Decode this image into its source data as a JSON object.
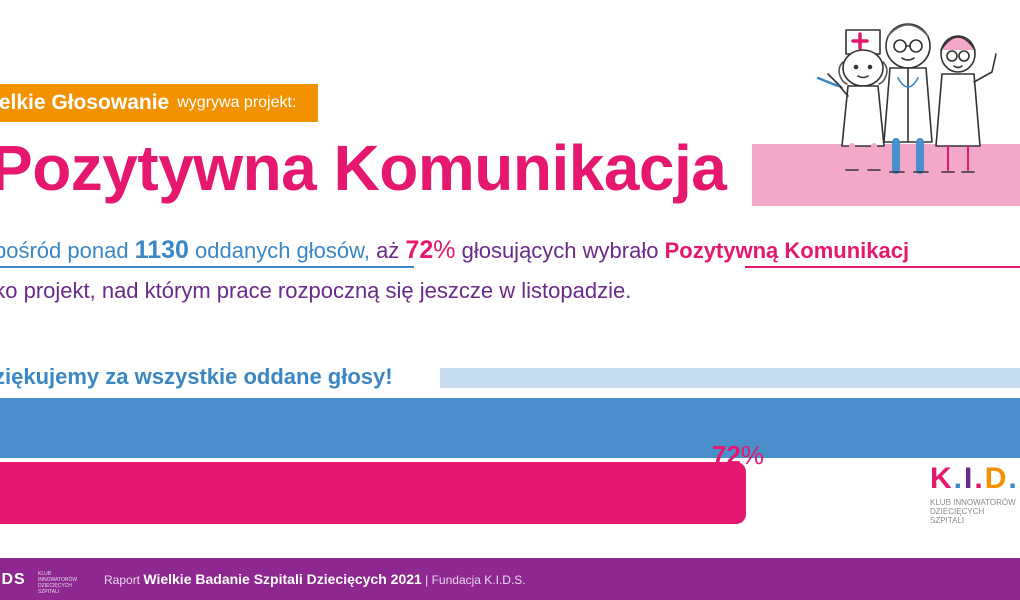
{
  "header": {
    "tag_strong": "ielkie Głosowanie",
    "tag_light": "wygrywa projekt:"
  },
  "title": "Pozytywna Komunikacja",
  "sentence": {
    "l1_a": "pośród ponad ",
    "l1_num": "1130",
    "l1_b": " oddanych głosów,",
    "l1_c": " aż ",
    "l1_pct_num": "72",
    "l1_pct_sign": "%",
    "l1_d": " głosujących wybrało ",
    "l1_project": "Pozytywną Komunikacj",
    "line2": "ako projekt, nad którym prace rozpoczną się jeszcze w listopadzie."
  },
  "thanks": "ziękujemy za wszystkie oddane głosy!",
  "bars": {
    "value": 72,
    "label_num": "72",
    "label_sign": "%"
  },
  "kids_logo": {
    "k": "K",
    "dot1": ".",
    "i": "I",
    "dot2": ".",
    "d": "D",
    "dot3": ".",
    "caption": "KLUB INNOWATORÓW DZIECIĘCYCH SZPITALI",
    "colors": {
      "k": "#e5176e",
      "i": "#6a2a8a",
      "d": "#f29200",
      "s": "#3b87c4"
    }
  },
  "footer": {
    "logo": "IDS",
    "logo_caption": "KLUB INNOWATORÓW DZIECIĘCYCH SZPITALI",
    "prefix": "Raport ",
    "report": "Wielkie Badanie Szpitali Dziecięcych 2021",
    "suffix": " | Fundacja K.I.D.S."
  },
  "illustration": "doctors-illustration"
}
